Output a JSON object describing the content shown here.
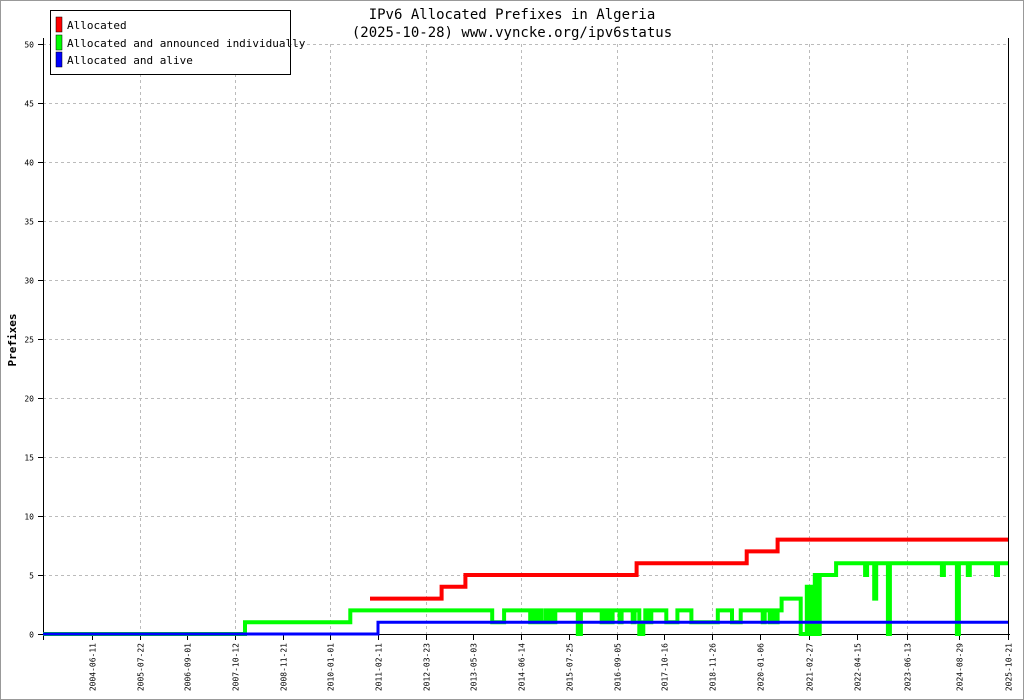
{
  "chart_data": {
    "type": "line",
    "step": true,
    "title": "IPv6 Allocated Prefixes in Algeria",
    "subtitle": "(2025-10-28) www.vyncke.org/ipv6status",
    "xlabel": "",
    "ylabel": "Prefixes",
    "xlim": [
      "2003-04-21",
      "2025-10-21"
    ],
    "ylim": [
      0,
      50
    ],
    "yticks": [
      0,
      5,
      10,
      15,
      20,
      25,
      30,
      35,
      40,
      45,
      50
    ],
    "xticks": [
      "2004-06-11",
      "2005-07-22",
      "2006-09-01",
      "2007-10-12",
      "2008-11-21",
      "2010-01-01",
      "2011-02-11",
      "2012-03-23",
      "2013-05-03",
      "2014-06-14",
      "2015-07-25",
      "2016-09-05",
      "2017-10-16",
      "2018-11-26",
      "2020-01-06",
      "2021-02-27",
      "2022-04-15",
      "2023-06-13",
      "2024-08-29",
      "2025-10-21"
    ],
    "grid": true,
    "legend_position": "top-left",
    "series": [
      {
        "name": "Allocated",
        "color": "#ff0000",
        "points": [
          [
            "2010-12-05",
            3
          ],
          [
            "2012-08-06",
            4
          ],
          [
            "2013-02-24",
            5
          ],
          [
            "2017-02-22",
            6
          ],
          [
            "2019-09-17",
            7
          ],
          [
            "2020-06-07",
            8
          ],
          [
            "2025-10-21",
            8
          ]
        ]
      },
      {
        "name": "Allocated and announced individually",
        "color": "#00ff00",
        "points": [
          [
            "2003-04-21",
            0
          ],
          [
            "2008-01-05",
            1
          ],
          [
            "2010-06-20",
            2
          ],
          [
            "2013-10-11",
            1
          ],
          [
            "2014-01-20",
            2
          ],
          [
            "2014-08-30",
            1
          ],
          [
            "2014-09-16",
            2
          ],
          [
            "2014-10-12",
            1
          ],
          [
            "2014-10-29",
            2
          ],
          [
            "2014-12-01",
            1
          ],
          [
            "2015-01-06",
            2
          ],
          [
            "2015-02-01",
            1
          ],
          [
            "2015-02-26",
            2
          ],
          [
            "2015-03-15",
            1
          ],
          [
            "2015-04-01",
            2
          ],
          [
            "2015-10-10",
            0
          ],
          [
            "2015-11-05",
            2
          ],
          [
            "2016-04-30",
            1
          ],
          [
            "2016-05-17",
            2
          ],
          [
            "2016-06-03",
            1
          ],
          [
            "2016-06-20",
            2
          ],
          [
            "2016-07-15",
            1
          ],
          [
            "2016-08-01",
            2
          ],
          [
            "2016-09-30",
            1
          ],
          [
            "2016-10-17",
            2
          ],
          [
            "2017-01-19",
            1
          ],
          [
            "2017-02-05",
            2
          ],
          [
            "2017-03-17",
            0
          ],
          [
            "2017-04-20",
            1
          ],
          [
            "2017-05-07",
            2
          ],
          [
            "2017-06-10",
            1
          ],
          [
            "2017-06-27",
            2
          ],
          [
            "2017-11-02",
            1
          ],
          [
            "2018-02-04",
            2
          ],
          [
            "2018-06-03",
            1
          ],
          [
            "2019-01-14",
            2
          ],
          [
            "2019-05-15",
            1
          ],
          [
            "2019-07-28",
            2
          ],
          [
            "2020-02-01",
            1
          ],
          [
            "2020-02-18",
            2
          ],
          [
            "2020-03-31",
            1
          ],
          [
            "2020-04-17",
            2
          ],
          [
            "2020-05-21",
            1
          ],
          [
            "2020-06-07",
            2
          ],
          [
            "2020-07-11",
            3
          ],
          [
            "2020-12-20",
            0
          ],
          [
            "2021-02-10",
            4
          ],
          [
            "2021-02-27",
            0
          ],
          [
            "2021-03-16",
            4
          ],
          [
            "2021-04-02",
            0
          ],
          [
            "2021-04-10",
            4
          ],
          [
            "2021-04-19",
            5
          ],
          [
            "2021-05-06",
            0
          ],
          [
            "2021-05-31",
            5
          ],
          [
            "2021-10-18",
            6
          ],
          [
            "2022-06-22",
            5
          ],
          [
            "2022-07-09",
            6
          ],
          [
            "2022-09-07",
            3
          ],
          [
            "2022-09-24",
            6
          ],
          [
            "2023-01-02",
            0
          ],
          [
            "2023-01-19",
            6
          ],
          [
            "2024-04-06",
            5
          ],
          [
            "2024-04-23",
            6
          ],
          [
            "2024-08-12",
            0
          ],
          [
            "2024-08-29",
            6
          ],
          [
            "2024-11-13",
            5
          ],
          [
            "2024-11-30",
            6
          ],
          [
            "2025-07-11",
            5
          ],
          [
            "2025-07-28",
            6
          ],
          [
            "2025-10-21",
            6
          ]
        ]
      },
      {
        "name": "Allocated and alive",
        "color": "#0000ff",
        "points": [
          [
            "2003-04-21",
            0
          ],
          [
            "2011-02-11",
            1
          ],
          [
            "2025-10-21",
            1
          ]
        ]
      }
    ]
  }
}
